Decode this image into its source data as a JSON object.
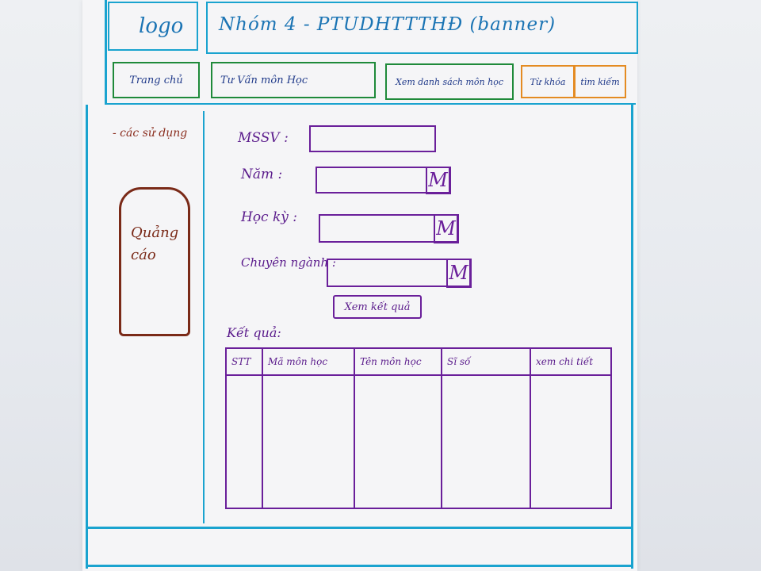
{
  "header": {
    "logo": "logo",
    "banner": "Nhóm 4 - PTUDHTTTHĐ (banner)"
  },
  "nav": {
    "items": [
      {
        "label": "Trang chủ"
      },
      {
        "label": "Tư Vấn môn Học"
      },
      {
        "label": "Xem danh sách môn học"
      },
      {
        "label": "Từ khóa"
      },
      {
        "label": "tìm kiếm"
      }
    ]
  },
  "sidebar": {
    "link": "- các sử dụng",
    "ad": "Quảng cáo"
  },
  "form": {
    "mssv_label": "MSSV :",
    "nam_label": "Năm :",
    "hocky_label": "Học kỳ :",
    "chuyennganh_label": "Chuyên ngành :",
    "dropdown_glyph": "M",
    "submit": "Xem kết quả"
  },
  "results": {
    "label": "Kết quả:",
    "columns": [
      "STT",
      "Mã môn học",
      "Tên môn học",
      "Sĩ số",
      "xem chi tiết"
    ]
  }
}
